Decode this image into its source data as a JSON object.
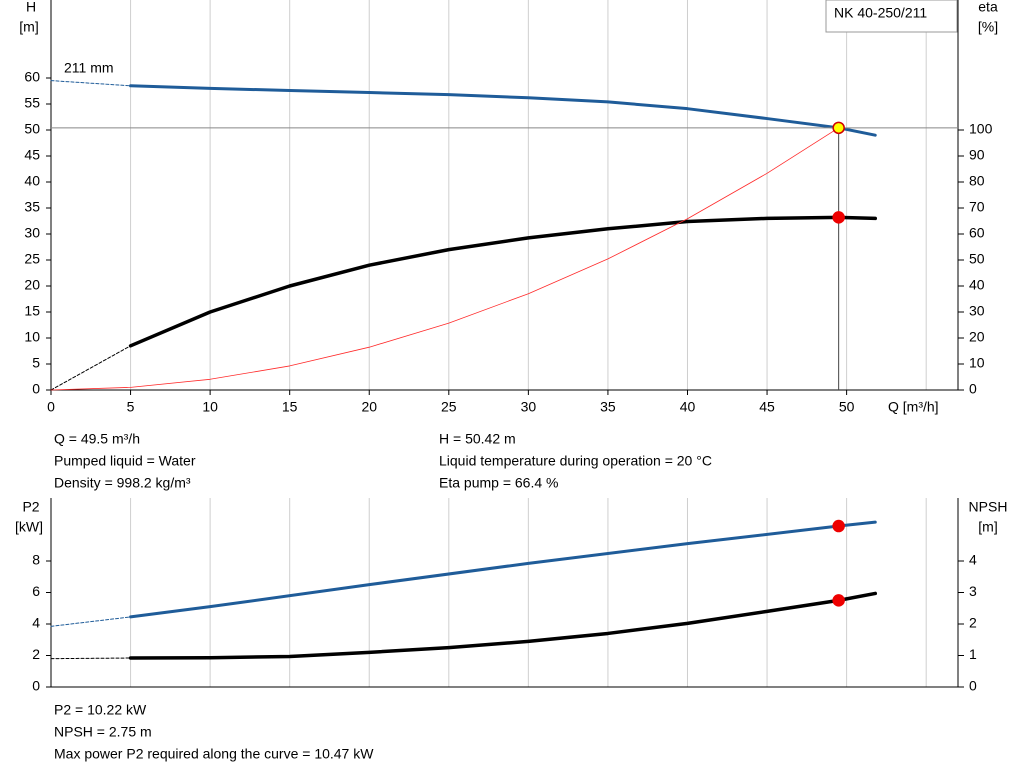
{
  "chart_data": [
    {
      "type": "line",
      "product": "NK 40-250/211",
      "annotation": "211 mm",
      "x_label": "Q [m³/h]",
      "y_label": "H",
      "y_unit": "[m]",
      "y2_label": "eta",
      "y2_unit": "[%]",
      "xlim": [
        0,
        57
      ],
      "xticks": [
        0,
        5,
        10,
        15,
        20,
        25,
        30,
        35,
        40,
        45,
        50
      ],
      "xgrid": [
        0,
        5,
        10,
        15,
        20,
        25,
        30,
        35,
        40,
        45,
        50,
        55
      ],
      "ylim": [
        0,
        75
      ],
      "yticks": [
        0,
        5,
        10,
        15,
        20,
        25,
        30,
        35,
        40,
        45,
        50,
        55,
        60
      ],
      "y2lim": [
        0,
        150
      ],
      "y2ticks": [
        0,
        10,
        20,
        30,
        40,
        50,
        60,
        70,
        80,
        90,
        100
      ],
      "series": [
        {
          "x": [
            0,
            5
          ],
          "values": [
            59.5,
            58.5
          ],
          "color": "#1f5c99",
          "width": 1,
          "dashed": true
        },
        {
          "x": [
            5,
            10,
            15,
            20,
            25,
            30,
            35,
            40,
            45,
            49.5,
            51.8
          ],
          "values": [
            58.5,
            58,
            57.6,
            57.2,
            56.8,
            56.2,
            55.4,
            54.1,
            52.2,
            50.42,
            49
          ],
          "color": "#1f5c99",
          "width": 3
        },
        {
          "x": [
            0,
            5
          ],
          "values": [
            0,
            17
          ],
          "color": "#000000",
          "width": 1,
          "dashed": true,
          "axis": "y2"
        },
        {
          "x": [
            5,
            10,
            15,
            20,
            25,
            30,
            35,
            40,
            45,
            49.5,
            51.8
          ],
          "values": [
            17,
            30,
            40,
            48,
            54,
            58.5,
            62,
            64.8,
            66,
            66.4,
            66
          ],
          "color": "#000000",
          "width": 3.5,
          "axis": "y2"
        },
        {
          "x": [
            0,
            5,
            10,
            15,
            20,
            25,
            30,
            35,
            40,
            45,
            49.5
          ],
          "values": [
            0,
            0.51,
            2.06,
            4.63,
            8.23,
            12.86,
            18.52,
            25.21,
            32.93,
            41.67,
            50.42
          ],
          "color": "#ff2a2a",
          "width": 0.8
        },
        {
          "x": [
            49.5
          ],
          "values": [
            50.42
          ],
          "color": "#ffff00",
          "marker": true,
          "edge": "#d00000",
          "guides": true
        },
        {
          "x": [
            49.5
          ],
          "values": [
            66.4
          ],
          "color": "#ee0000",
          "marker": true,
          "edge": "#ee0000",
          "axis": "y2"
        }
      ],
      "notes_left": [
        "Q = 49.5 m³/h",
        "Pumped liquid = Water",
        "Density = 998.2 kg/m³"
      ],
      "notes_right": [
        "H = 50.42 m",
        "Liquid temperature during operation = 20 °C",
        "Eta pump = 66.4 %"
      ]
    },
    {
      "type": "line",
      "y_label": "P2",
      "y_unit": "[kW]",
      "y2_label": "NPSH",
      "y2_unit": "[m]",
      "xlim": [
        0,
        57
      ],
      "xgrid": [
        0,
        5,
        10,
        15,
        20,
        25,
        30,
        35,
        40,
        45,
        50,
        55
      ],
      "ylim": [
        0,
        12
      ],
      "yticks": [
        0,
        2,
        4,
        6,
        8
      ],
      "y2lim": [
        0,
        6
      ],
      "y2ticks": [
        0,
        1,
        2,
        3,
        4
      ],
      "series": [
        {
          "x": [
            0,
            5
          ],
          "values": [
            3.85,
            4.45
          ],
          "color": "#1f5c99",
          "width": 1,
          "dashed": true
        },
        {
          "x": [
            5,
            10,
            20,
            30,
            40,
            49.5,
            51.8
          ],
          "values": [
            4.45,
            5.1,
            6.5,
            7.85,
            9.1,
            10.22,
            10.47
          ],
          "color": "#1f5c99",
          "width": 3
        },
        {
          "x": [
            0,
            5
          ],
          "values": [
            0.9,
            0.92
          ],
          "color": "#000000",
          "width": 1,
          "dashed": true,
          "axis": "y2"
        },
        {
          "x": [
            5,
            10,
            15,
            20,
            25,
            30,
            35,
            40,
            45,
            49.5,
            51.8
          ],
          "values": [
            0.92,
            0.93,
            0.97,
            1.1,
            1.25,
            1.45,
            1.7,
            2.02,
            2.4,
            2.75,
            2.97
          ],
          "color": "#000000",
          "width": 3.5,
          "axis": "y2"
        },
        {
          "x": [
            49.5
          ],
          "values": [
            10.22
          ],
          "color": "#ee0000",
          "marker": true,
          "edge": "#ee0000"
        },
        {
          "x": [
            49.5
          ],
          "values": [
            2.75
          ],
          "color": "#ee0000",
          "marker": true,
          "edge": "#ee0000",
          "axis": "y2"
        }
      ],
      "notes": [
        "P2 = 10.22 kW",
        "NPSH = 2.75 m",
        "Max power P2 required along the curve = 10.47 kW"
      ]
    }
  ]
}
